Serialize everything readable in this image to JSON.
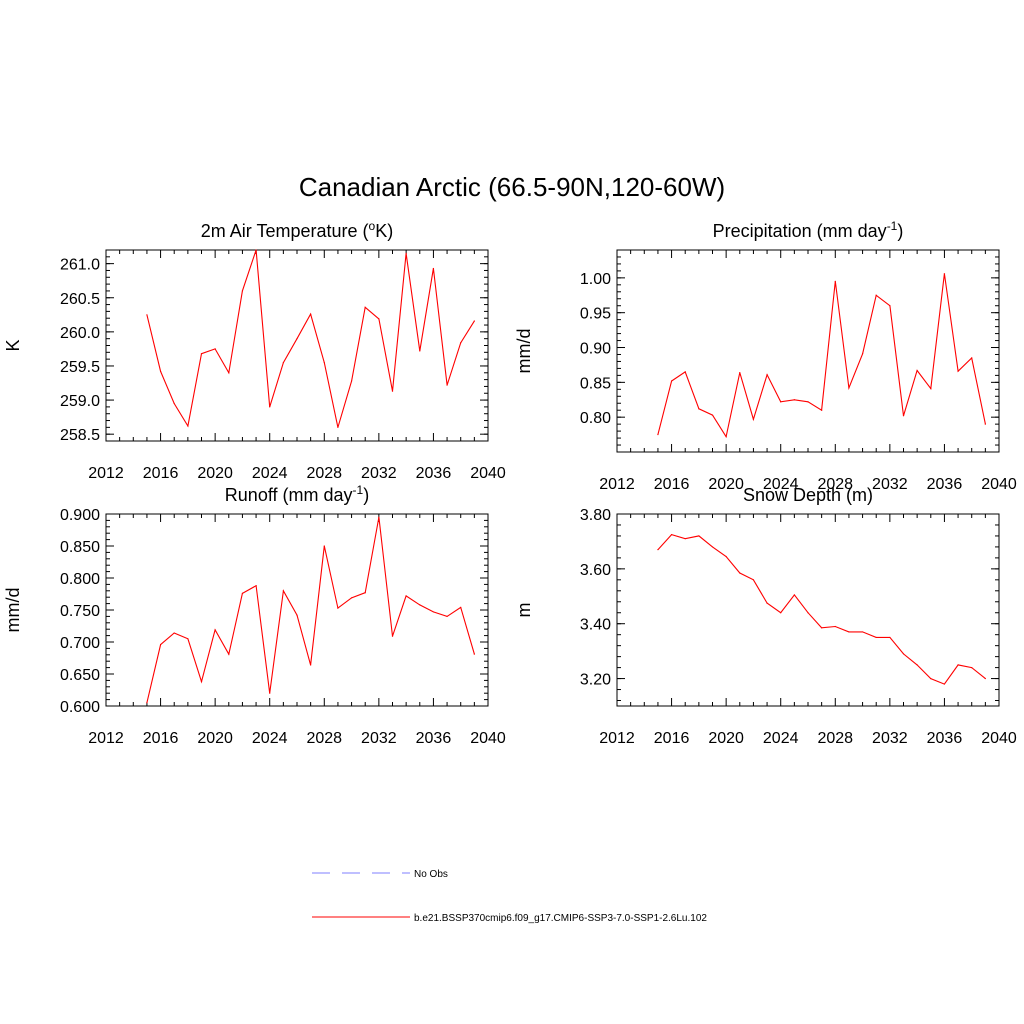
{
  "figure": {
    "title": "Canadian Arctic (66.5-90N,120-60W)"
  },
  "legend": {
    "items": [
      {
        "label": "No Obs",
        "color": "#aaaaff",
        "style": "dashed"
      },
      {
        "label": "b.e21.BSSP370cmip6.f09_g17.CMIP6-SSP3-7.0-SSP1-2.6Lu.102",
        "color": "#ff0000",
        "style": "solid"
      }
    ]
  },
  "chart_data": [
    {
      "type": "line",
      "title": "2m Air Temperature (",
      "title_sup": "o",
      "title_suffix": "K)",
      "ylabel": "K",
      "xlim": [
        2012,
        2040
      ],
      "ylim": [
        258.4,
        261.2
      ],
      "xticks": [
        "2012",
        "2016",
        "2020",
        "2024",
        "2028",
        "2032",
        "2036",
        "2040"
      ],
      "yticks": [
        "258.5",
        "259.0",
        "259.5",
        "260.0",
        "260.5",
        "261.0"
      ],
      "x": [
        2015,
        2016,
        2017,
        2018,
        2019,
        2020,
        2021,
        2022,
        2023,
        2024,
        2025,
        2026,
        2027,
        2028,
        2029,
        2030,
        2031,
        2032,
        2033,
        2034,
        2035,
        2036,
        2037,
        2038,
        2039
      ],
      "series": [
        {
          "color": "#ff0000",
          "values": [
            260.25,
            259.42,
            258.95,
            258.62,
            259.68,
            259.75,
            259.4,
            260.6,
            261.2,
            258.9,
            259.55,
            259.9,
            260.26,
            259.55,
            258.6,
            259.28,
            260.36,
            260.19,
            259.13,
            261.15,
            259.72,
            260.93,
            259.22,
            259.84,
            260.16
          ]
        }
      ]
    },
    {
      "type": "line",
      "title": "Precipitation (mm day",
      "title_sup": "-1",
      "title_suffix": ")",
      "ylabel": "mm/d",
      "xlim": [
        2012,
        2040
      ],
      "ylim": [
        0.75,
        1.04
      ],
      "xticks": [
        "2012",
        "2016",
        "2020",
        "2024",
        "2028",
        "2032",
        "2036",
        "2040"
      ],
      "yticks": [
        "0.80",
        "0.85",
        "0.90",
        "0.95",
        "1.00"
      ],
      "x": [
        2015,
        2016,
        2017,
        2018,
        2019,
        2020,
        2021,
        2022,
        2023,
        2024,
        2025,
        2026,
        2027,
        2028,
        2029,
        2030,
        2031,
        2032,
        2033,
        2034,
        2035,
        2036,
        2037,
        2038,
        2039
      ],
      "series": [
        {
          "color": "#ff0000",
          "values": [
            0.775,
            0.852,
            0.865,
            0.812,
            0.803,
            0.772,
            0.864,
            0.797,
            0.861,
            0.822,
            0.825,
            0.822,
            0.81,
            0.995,
            0.842,
            0.891,
            0.975,
            0.96,
            0.802,
            0.867,
            0.841,
            1.006,
            0.866,
            0.885,
            0.79
          ]
        }
      ]
    },
    {
      "type": "line",
      "title": "Runoff (mm day",
      "title_sup": "-1",
      "title_suffix": ")",
      "ylabel": "mm/d",
      "xlim": [
        2012,
        2040
      ],
      "ylim": [
        0.6,
        0.9
      ],
      "xticks": [
        "2012",
        "2016",
        "2020",
        "2024",
        "2028",
        "2032",
        "2036",
        "2040"
      ],
      "yticks": [
        "0.600",
        "0.650",
        "0.700",
        "0.750",
        "0.800",
        "0.850",
        "0.900"
      ],
      "x": [
        2015,
        2016,
        2017,
        2018,
        2019,
        2020,
        2021,
        2022,
        2023,
        2024,
        2025,
        2026,
        2027,
        2028,
        2029,
        2030,
        2031,
        2032,
        2033,
        2034,
        2035,
        2036,
        2037,
        2038,
        2039
      ],
      "series": [
        {
          "color": "#ff0000",
          "values": [
            0.605,
            0.696,
            0.714,
            0.705,
            0.638,
            0.719,
            0.681,
            0.776,
            0.788,
            0.62,
            0.78,
            0.742,
            0.664,
            0.85,
            0.753,
            0.769,
            0.777,
            0.895,
            0.709,
            0.772,
            0.758,
            0.747,
            0.74,
            0.754,
            0.681
          ]
        }
      ]
    },
    {
      "type": "line",
      "title": "Snow Depth (m)",
      "title_sup": "",
      "title_suffix": "",
      "ylabel": "m",
      "xlim": [
        2012,
        2040
      ],
      "ylim": [
        3.1,
        3.8
      ],
      "xticks": [
        "2012",
        "2016",
        "2020",
        "2024",
        "2028",
        "2032",
        "2036",
        "2040"
      ],
      "yticks": [
        "3.20",
        "3.40",
        "3.60",
        "3.80"
      ],
      "x": [
        2015,
        2016,
        2017,
        2018,
        2019,
        2020,
        2021,
        2022,
        2023,
        2024,
        2025,
        2026,
        2027,
        2028,
        2029,
        2030,
        2031,
        2032,
        2033,
        2034,
        2035,
        2036,
        2037,
        2038,
        2039
      ],
      "series": [
        {
          "color": "#ff0000",
          "values": [
            3.67,
            3.725,
            3.71,
            3.72,
            3.68,
            3.645,
            3.585,
            3.56,
            3.475,
            3.44,
            3.505,
            3.44,
            3.385,
            3.39,
            3.37,
            3.37,
            3.35,
            3.35,
            3.29,
            3.25,
            3.2,
            3.18,
            3.25,
            3.24,
            3.2
          ]
        }
      ]
    }
  ]
}
